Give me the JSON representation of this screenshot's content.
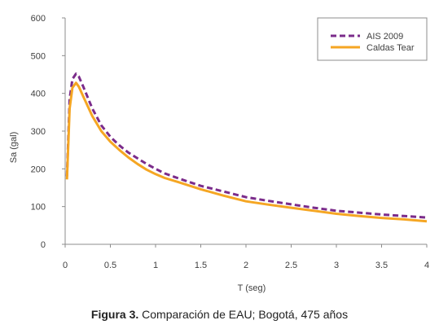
{
  "chart_data": {
    "type": "line",
    "xlabel": "T (seg)",
    "ylabel": "Sa (gal)",
    "xlim": [
      0,
      4
    ],
    "ylim": [
      0,
      600
    ],
    "x_ticks": [
      "0",
      "0.5",
      "1",
      "1.5",
      "2",
      "2.5",
      "3",
      "3.5",
      "4"
    ],
    "y_ticks": [
      "0",
      "100",
      "200",
      "300",
      "400",
      "500",
      "600"
    ],
    "grid": false,
    "legend_position": "top-right",
    "series": [
      {
        "name": "AIS 2009",
        "color": "#7B2C8B",
        "style": "dashed",
        "x": [
          0.02,
          0.05,
          0.08,
          0.12,
          0.15,
          0.2,
          0.3,
          0.4,
          0.5,
          0.6,
          0.7,
          0.8,
          0.9,
          1.0,
          1.1,
          1.25,
          1.5,
          1.75,
          2.0,
          2.25,
          2.5,
          2.75,
          3.0,
          3.25,
          3.5,
          3.75,
          4.0
        ],
        "y": [
          180,
          385,
          438,
          452,
          445,
          418,
          360,
          315,
          285,
          262,
          243,
          228,
          213,
          200,
          188,
          175,
          155,
          140,
          125,
          115,
          106,
          97,
          89,
          84,
          79,
          75,
          71
        ]
      },
      {
        "name": "Caldas Tear",
        "color": "#F5A623",
        "style": "solid",
        "x": [
          0.02,
          0.05,
          0.08,
          0.12,
          0.15,
          0.2,
          0.3,
          0.4,
          0.5,
          0.6,
          0.7,
          0.8,
          0.9,
          1.0,
          1.1,
          1.25,
          1.5,
          1.75,
          2.0,
          2.25,
          2.5,
          2.75,
          3.0,
          3.25,
          3.5,
          3.75,
          4.0
        ],
        "y": [
          172,
          360,
          415,
          428,
          418,
          392,
          340,
          300,
          272,
          250,
          230,
          213,
          198,
          186,
          176,
          165,
          146,
          129,
          114,
          105,
          97,
          89,
          81,
          75,
          70,
          66,
          61
        ]
      }
    ]
  },
  "caption": {
    "label": "Figura 3.",
    "text": " Comparación de EAU; Bogotá, 475 años"
  }
}
